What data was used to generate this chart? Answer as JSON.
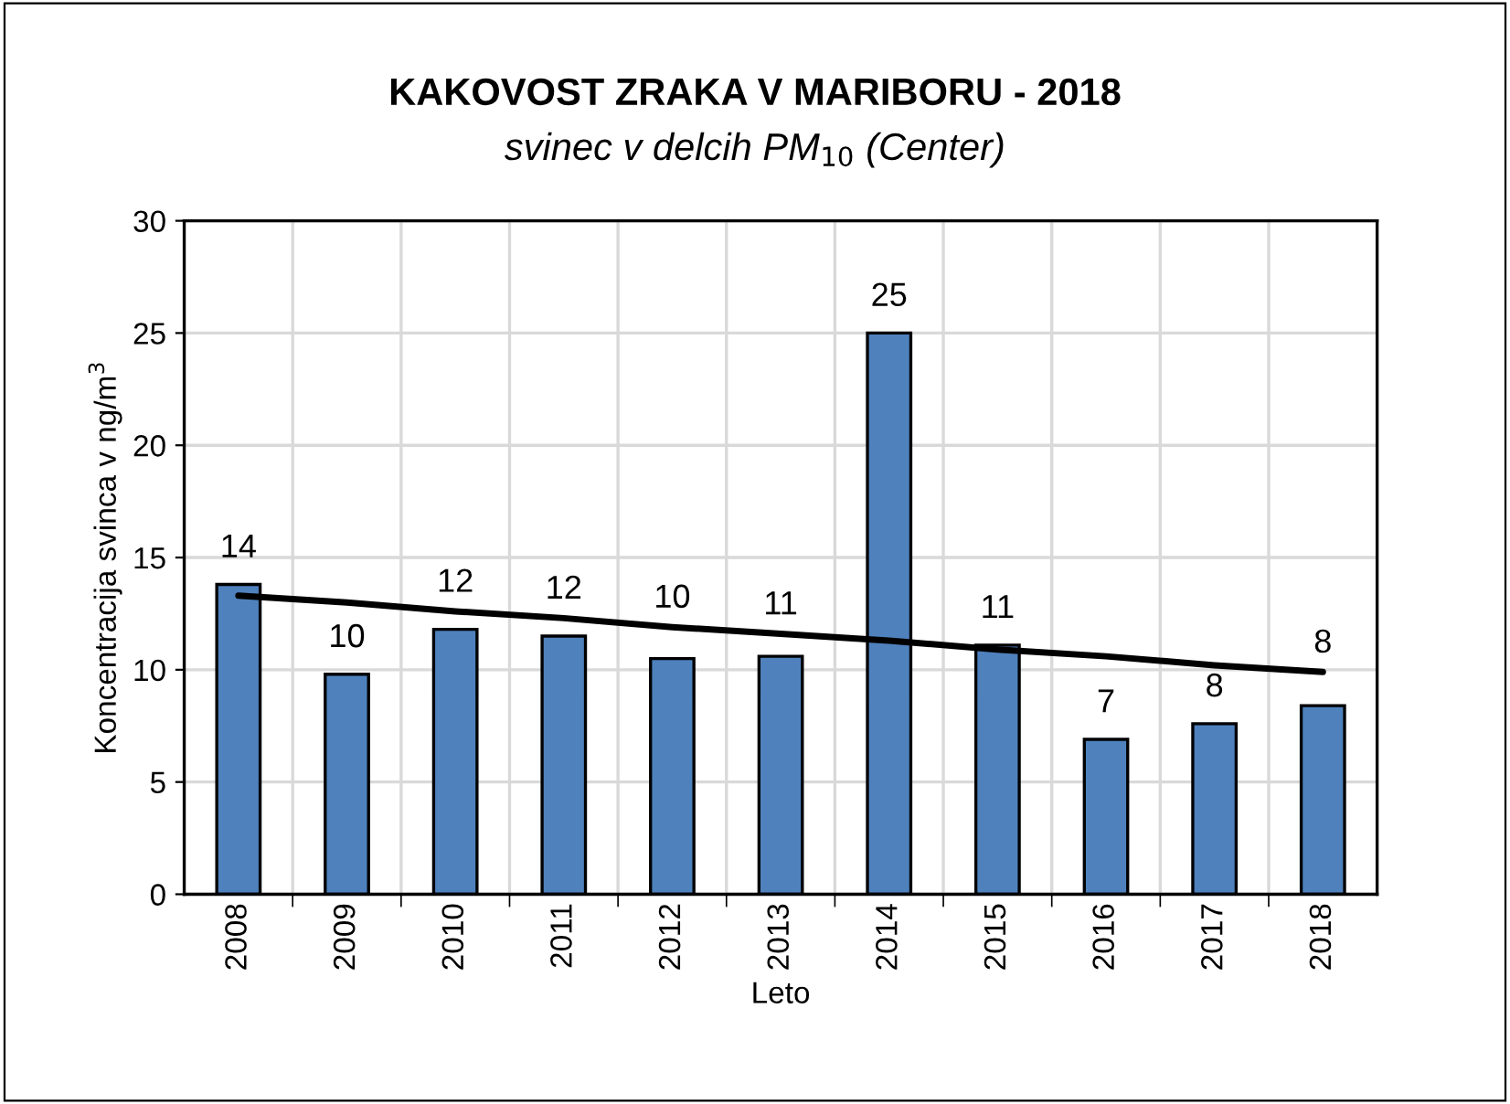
{
  "chart_data": {
    "type": "bar",
    "title": "KAKOVOST ZRAKA V MARIBORU - 2018",
    "subtitle": "svinec v delcih PM$_{10}$ (Center)",
    "xlabel": "Leto",
    "ylabel": "Koncentracija svinca v ng/m$^{3}$",
    "categories": [
      "2008",
      "2009",
      "2010",
      "2011",
      "2012",
      "2013",
      "2014",
      "2015",
      "2016",
      "2017",
      "2018"
    ],
    "series": [
      {
        "color": "#4f81bd",
        "values": [
          13.8,
          9.8,
          11.8,
          11.5,
          10.5,
          10.6,
          25.0,
          11.1,
          6.9,
          7.6,
          8.4
        ],
        "value_labels": [
          "14",
          "10",
          "12",
          "12",
          "10",
          "11",
          "25",
          "11",
          "7",
          "8",
          "8"
        ]
      },
      {
        "type": "line",
        "color": "#000000",
        "values": [
          13.3,
          13.0,
          12.6,
          12.3,
          11.9,
          11.6,
          11.3,
          10.9,
          10.6,
          10.2,
          9.9
        ]
      }
    ],
    "ylim": [
      0,
      30
    ],
    "yticks": [
      0,
      5,
      10,
      15,
      20,
      25,
      30
    ],
    "grid": true,
    "legend": false
  }
}
